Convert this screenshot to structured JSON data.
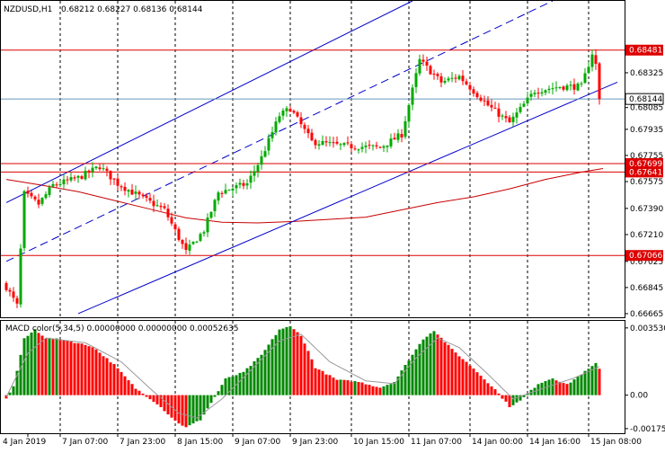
{
  "chart_data": [
    {
      "type": "candlestick",
      "symbol_label": "NZDUSD,H1",
      "ohlc_label": "0.68212 0.68227 0.68136 0.68144",
      "y_ticks": [
        "0.68325",
        "0.68085",
        "0.67935",
        "0.67755",
        "0.67575",
        "0.67390",
        "0.67210",
        "0.67025",
        "0.66845",
        "0.66665"
      ],
      "ylim": [
        0.6664,
        0.6882
      ],
      "x_ticks": [
        "4 Jan 2019",
        "7 Jan 07:00",
        "7 Jan 23:00",
        "8 Jan 15:00",
        "9 Jan 07:00",
        "9 Jan 23:00",
        "10 Jan 15:00",
        "11 Jan 07:00",
        "14 Jan 00:00",
        "14 Jan 16:00",
        "15 Jan 08:00"
      ],
      "grid": true,
      "bars_count": 170,
      "current_price_label": "0.68144",
      "current_price": 0.68144,
      "horizontal_levels": [
        {
          "label": "0.68481",
          "value": 0.68481
        },
        {
          "label": "0.67699",
          "value": 0.67699
        },
        {
          "label": "0.67641",
          "value": 0.67641
        },
        {
          "label": "0.67066",
          "value": 0.67066
        }
      ],
      "channel": [
        {
          "style": "solid",
          "from": [
            0,
            0.6743
          ],
          "to": [
            113,
            0.6882
          ]
        },
        {
          "style": "dashed",
          "from": [
            0,
            0.67025
          ],
          "to": [
            152,
            0.6882
          ]
        },
        {
          "style": "solid",
          "from": [
            20,
            0.66665
          ],
          "to": [
            170,
            0.6826
          ]
        }
      ],
      "moving_average": {
        "points": [
          [
            0,
            0.6759
          ],
          [
            10,
            0.6755
          ],
          [
            20,
            0.67505
          ],
          [
            30,
            0.67445
          ],
          [
            40,
            0.67385
          ],
          [
            50,
            0.67325
          ],
          [
            60,
            0.67295
          ],
          [
            70,
            0.6729
          ],
          [
            80,
            0.673
          ],
          [
            90,
            0.67315
          ],
          [
            100,
            0.6733
          ],
          [
            110,
            0.6738
          ],
          [
            120,
            0.6743
          ],
          [
            130,
            0.6747
          ],
          [
            140,
            0.67525
          ],
          [
            150,
            0.6759
          ],
          [
            160,
            0.6764
          ],
          [
            166,
            0.67665
          ]
        ],
        "color": "#c80000"
      },
      "series": [
        {
          "name": "price",
          "key_closes": [
            [
              0,
              0.6685
            ],
            [
              3,
              0.6672
            ],
            [
              5,
              0.6749
            ],
            [
              9,
              0.6742
            ],
            [
              13,
              0.6755
            ],
            [
              20,
              0.676
            ],
            [
              26,
              0.6768
            ],
            [
              31,
              0.6756
            ],
            [
              38,
              0.6746
            ],
            [
              44,
              0.6738
            ],
            [
              50,
              0.6709
            ],
            [
              55,
              0.6724
            ],
            [
              59,
              0.675
            ],
            [
              67,
              0.6756
            ],
            [
              71,
              0.6774
            ],
            [
              76,
              0.6803
            ],
            [
              79,
              0.6808
            ],
            [
              85,
              0.6785
            ],
            [
              94,
              0.6782
            ],
            [
              104,
              0.6781
            ],
            [
              110,
              0.679
            ],
            [
              115,
              0.6841
            ],
            [
              121,
              0.6826
            ],
            [
              126,
              0.683
            ],
            [
              134,
              0.681
            ],
            [
              140,
              0.6798
            ],
            [
              147,
              0.682
            ],
            [
              154,
              0.6823
            ],
            [
              160,
              0.6823
            ],
            [
              163,
              0.6846
            ],
            [
              167,
              0.68144
            ]
          ]
        }
      ],
      "colors": {
        "bull": "#00aa00",
        "bear": "#ff0000",
        "channel": "#0000cc",
        "level": "#dd0000",
        "price_line": "#6699bb"
      }
    },
    {
      "type": "bar",
      "indicator_label": "MACD color(5,34,5) 0.00000000 0.00000000 0.00052635",
      "y_ticks": [
        "0.0035304",
        "0.00",
        "-0.001759"
      ],
      "ylim": [
        -0.002,
        0.0039
      ],
      "series": [
        {
          "name": "histogram",
          "key_values": [
            [
              0,
              -0.00015
            ],
            [
              2,
              0.00045
            ],
            [
              5,
              0.00295
            ],
            [
              8,
              0.00345
            ],
            [
              11,
              0.003
            ],
            [
              16,
              0.0029
            ],
            [
              24,
              0.00255
            ],
            [
              30,
              0.0016
            ],
            [
              36,
              0.00035
            ],
            [
              42,
              -0.00045
            ],
            [
              47,
              -0.00135
            ],
            [
              50,
              -0.0017
            ],
            [
              54,
              -0.0013
            ],
            [
              58,
              -0.0001
            ],
            [
              61,
              0.00085
            ],
            [
              66,
              0.0012
            ],
            [
              71,
              0.0021
            ],
            [
              76,
              0.00345
            ],
            [
              79,
              0.0036
            ],
            [
              82,
              0.00315
            ],
            [
              86,
              0.00145
            ],
            [
              92,
              0.0008
            ],
            [
              98,
              0.0007
            ],
            [
              104,
              0.0004
            ],
            [
              108,
              0.0007
            ],
            [
              112,
              0.00185
            ],
            [
              116,
              0.00295
            ],
            [
              119,
              0.0034
            ],
            [
              124,
              0.0024
            ],
            [
              130,
              0.0014
            ],
            [
              136,
              0.0003
            ],
            [
              140,
              -0.0006
            ],
            [
              143,
              -0.0003
            ],
            [
              148,
              0.0006
            ],
            [
              152,
              0.0009
            ],
            [
              156,
              0.00055
            ],
            [
              160,
              0.0011
            ],
            [
              164,
              0.00165
            ],
            [
              168,
              0.00053
            ]
          ]
        },
        {
          "name": "signal",
          "key_values": [
            [
              0,
              -0.0001
            ],
            [
              6,
              0.0022
            ],
            [
              11,
              0.003
            ],
            [
              22,
              0.00275
            ],
            [
              32,
              0.00175
            ],
            [
              40,
              0.00035
            ],
            [
              48,
              -0.00095
            ],
            [
              53,
              -0.0012
            ],
            [
              60,
              -0.0002
            ],
            [
              68,
              0.0013
            ],
            [
              76,
              0.00285
            ],
            [
              82,
              0.0032
            ],
            [
              90,
              0.00175
            ],
            [
              100,
              0.00075
            ],
            [
              108,
              0.0006
            ],
            [
              114,
              0.00195
            ],
            [
              120,
              0.003
            ],
            [
              126,
              0.0025
            ],
            [
              134,
              0.0011
            ],
            [
              141,
              -0.0002
            ],
            [
              150,
              0.0004
            ],
            [
              158,
              0.0009
            ],
            [
              165,
              0.0015
            ],
            [
              170,
              0.0007
            ]
          ]
        }
      ],
      "colors": {
        "positive": "#008800",
        "negative": "#ff0000",
        "signal": "#999999"
      }
    }
  ]
}
